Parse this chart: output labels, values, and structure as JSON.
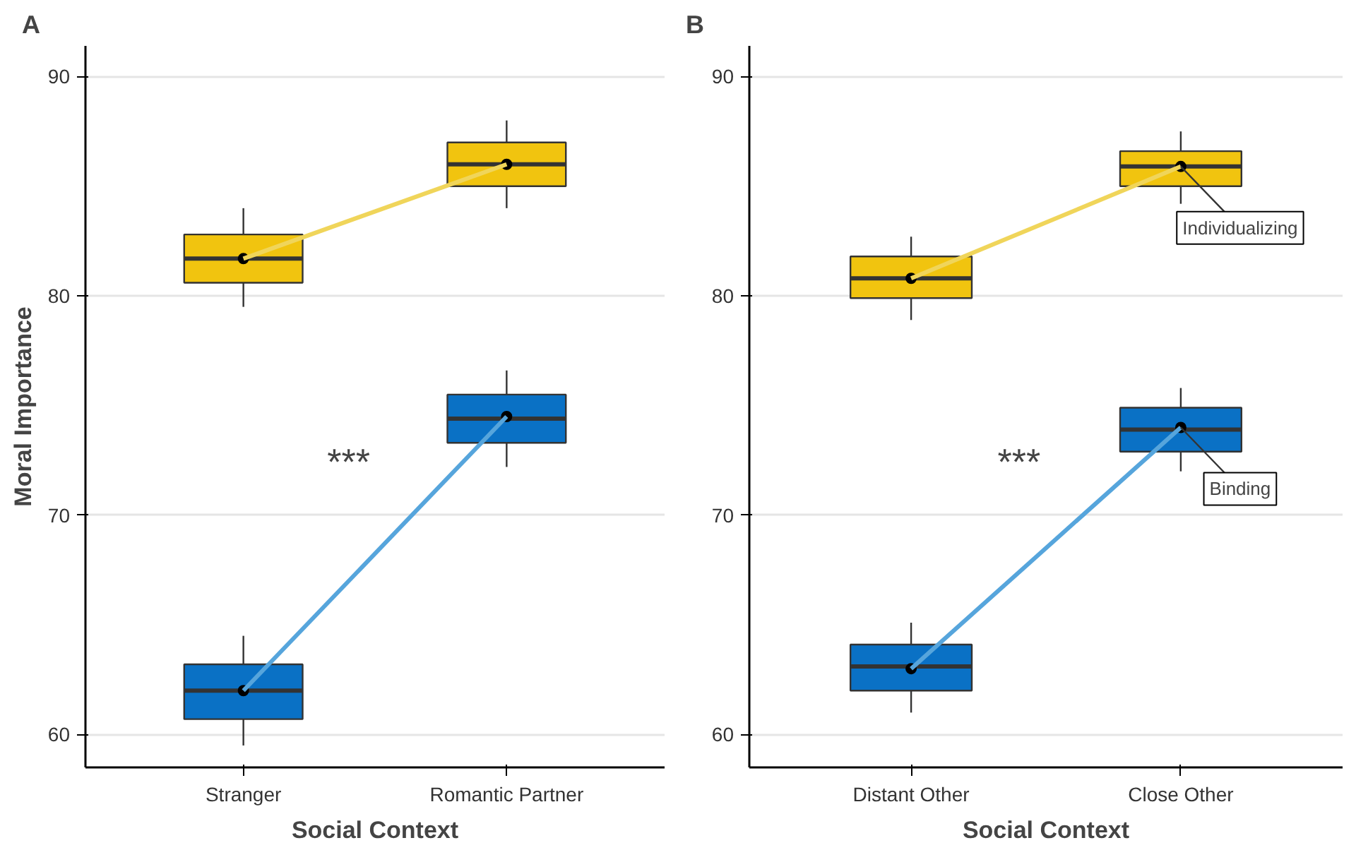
{
  "chart_data": [
    {
      "type": "box",
      "title": "A",
      "xlabel": "Social Context",
      "ylabel": "Moral Importance",
      "categories": [
        "Stranger",
        "Romantic Partner"
      ],
      "ylim": [
        58.5,
        91.4
      ],
      "yticks": [
        60,
        70,
        80,
        90
      ],
      "grid": "y",
      "annotations": [
        "***"
      ],
      "series": [
        {
          "type": "line",
          "color": "#f0d55a",
          "values": [
            81.7,
            86.0
          ]
        },
        {
          "type": "line",
          "color": "#56a5dc",
          "values": [
            62.0,
            74.5
          ]
        },
        {
          "color": "#f1c40f",
          "boxes": [
            {
              "low": 79.5,
              "q1": 80.6,
              "median": 81.7,
              "q3": 82.8,
              "high": 84.0,
              "mean": 81.7
            },
            {
              "low": 84.0,
              "q1": 85.0,
              "median": 86.0,
              "q3": 87.0,
              "high": 88.0,
              "mean": 86.0
            }
          ]
        },
        {
          "color": "#0a71c5",
          "boxes": [
            {
              "low": 59.5,
              "q1": 60.7,
              "median": 62.0,
              "q3": 63.2,
              "high": 64.5,
              "mean": 62.0
            },
            {
              "low": 72.2,
              "q1": 73.3,
              "median": 74.4,
              "q3": 75.5,
              "high": 76.6,
              "mean": 74.5
            }
          ]
        }
      ]
    },
    {
      "type": "box",
      "title": "B",
      "xlabel": "Social Context",
      "categories": [
        "Distant Other",
        "Close Other"
      ],
      "ylim": [
        58.5,
        91.4
      ],
      "yticks": [
        60,
        70,
        80,
        90
      ],
      "grid": "y",
      "annotations": [
        "***",
        {
          "text": "Individualizing",
          "x": "Close Other",
          "y": 85.9
        },
        {
          "text": "Binding",
          "x": "Close Other",
          "y": 74.0
        }
      ],
      "series": [
        {
          "type": "line",
          "color": "#f0d55a",
          "values": [
            80.8,
            85.9
          ]
        },
        {
          "type": "line",
          "color": "#56a5dc",
          "values": [
            63.0,
            74.0
          ]
        },
        {
          "color": "#f1c40f",
          "boxes": [
            {
              "low": 78.9,
              "q1": 79.9,
              "median": 80.8,
              "q3": 81.8,
              "high": 82.7,
              "mean": 80.8
            },
            {
              "low": 84.2,
              "q1": 85.0,
              "median": 85.9,
              "q3": 86.6,
              "high": 87.5,
              "mean": 85.9
            }
          ]
        },
        {
          "color": "#0a71c5",
          "boxes": [
            {
              "low": 61.0,
              "q1": 62.0,
              "median": 63.1,
              "q3": 64.1,
              "high": 65.1,
              "mean": 63.0
            },
            {
              "low": 72.0,
              "q1": 72.9,
              "median": 73.9,
              "q3": 74.9,
              "high": 75.8,
              "mean": 74.0
            }
          ]
        }
      ]
    }
  ]
}
